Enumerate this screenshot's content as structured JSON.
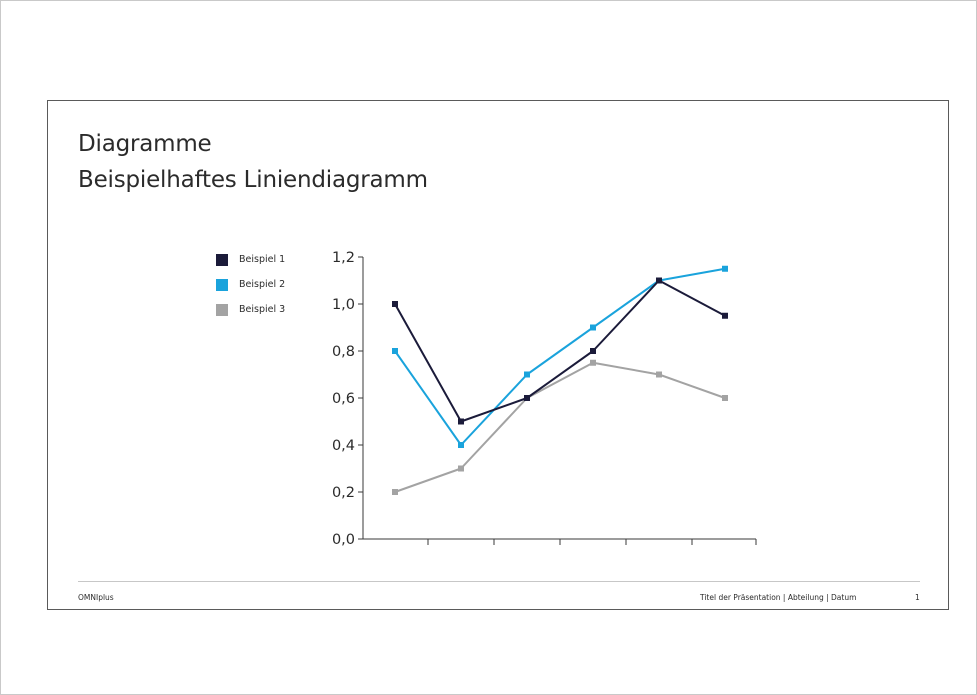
{
  "slide": {
    "title_line1": "Diagramme",
    "title_line2": "Beispielhaftes Liniendiagramm"
  },
  "footer": {
    "brand": "OMNIplus",
    "info": "Titel der Präsentation | Abteilung | Datum",
    "page_number": "1"
  },
  "chart_data": {
    "type": "line",
    "categories": [
      "1",
      "2",
      "3",
      "4",
      "5",
      "6"
    ],
    "show_category_labels": false,
    "ylim": [
      0,
      1.2
    ],
    "yticks": [
      0,
      0.2,
      0.4,
      0.6,
      0.8,
      1.0,
      1.2
    ],
    "ytick_labels": [
      "0,0",
      "0,2",
      "0,4",
      "0,6",
      "0,8",
      "1,0",
      "1,2"
    ],
    "grid": false,
    "legend_position": "left",
    "series": [
      {
        "name": "Beispiel 1",
        "color": "#1b1b3a",
        "values": [
          1.0,
          0.5,
          0.6,
          0.8,
          1.1,
          0.95
        ]
      },
      {
        "name": "Beispiel 2",
        "color": "#1aa3dc",
        "values": [
          0.8,
          0.4,
          0.7,
          0.9,
          1.1,
          1.15
        ]
      },
      {
        "name": "Beispiel 3",
        "color": "#a3a3a3",
        "values": [
          0.2,
          0.3,
          0.6,
          0.75,
          0.7,
          0.6
        ]
      }
    ]
  }
}
